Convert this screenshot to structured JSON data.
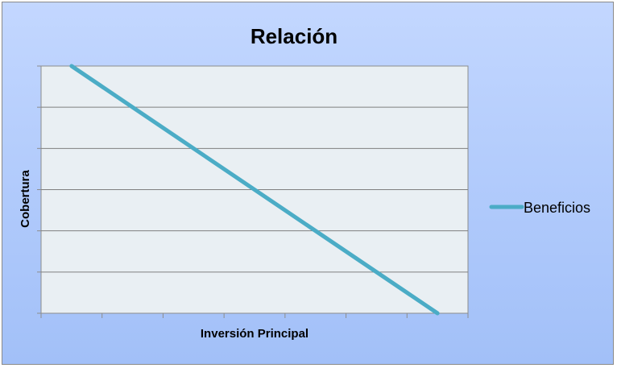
{
  "chart_data": {
    "type": "line",
    "title": "Relación",
    "xlabel": "Inversión Principal",
    "ylabel": "Cobertura",
    "categories": [
      "",
      "",
      "",
      "",
      "",
      "",
      ""
    ],
    "xlim": [
      0,
      7
    ],
    "ylim": [
      0,
      6
    ],
    "grid": true,
    "legend_position": "right",
    "series": [
      {
        "name": "Beneficios",
        "color": "#4bacc6",
        "x": [
          0.5,
          6.5
        ],
        "values": [
          6,
          0
        ]
      }
    ],
    "colors": {
      "plot_background": "#e9eff3",
      "gridline": "#7f7f7f",
      "axis": "#8c8c8c"
    }
  }
}
